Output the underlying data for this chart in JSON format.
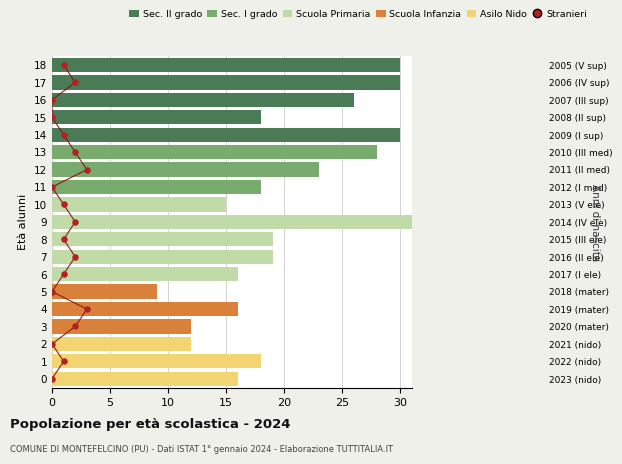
{
  "ages": [
    18,
    17,
    16,
    15,
    14,
    13,
    12,
    11,
    10,
    9,
    8,
    7,
    6,
    5,
    4,
    3,
    2,
    1,
    0
  ],
  "bar_values": [
    30,
    30,
    26,
    18,
    30,
    28,
    23,
    18,
    15,
    31,
    19,
    19,
    16,
    9,
    16,
    12,
    12,
    18,
    16
  ],
  "stranieri_x": [
    1,
    2,
    0,
    0,
    1,
    2,
    3,
    0,
    1,
    2,
    1,
    2,
    1,
    0,
    3,
    2,
    0,
    1,
    0
  ],
  "right_labels": [
    "2005 (V sup)",
    "2006 (IV sup)",
    "2007 (III sup)",
    "2008 (II sup)",
    "2009 (I sup)",
    "2010 (III med)",
    "2011 (II med)",
    "2012 (I med)",
    "2013 (V ele)",
    "2014 (IV ele)",
    "2015 (III ele)",
    "2016 (II ele)",
    "2017 (I ele)",
    "2018 (mater)",
    "2019 (mater)",
    "2020 (mater)",
    "2021 (nido)",
    "2022 (nido)",
    "2023 (nido)"
  ],
  "bar_colors": [
    "#4a7a56",
    "#4a7a56",
    "#4a7a56",
    "#4a7a56",
    "#4a7a56",
    "#7aab6e",
    "#7aab6e",
    "#7aab6e",
    "#c0dba8",
    "#c0dba8",
    "#c0dba8",
    "#c0dba8",
    "#c0dba8",
    "#d9813a",
    "#d9813a",
    "#d9813a",
    "#f2d472",
    "#f2d472",
    "#f2d472"
  ],
  "legend_labels": [
    "Sec. II grado",
    "Sec. I grado",
    "Scuola Primaria",
    "Scuola Infanzia",
    "Asilo Nido",
    "Stranieri"
  ],
  "legend_colors": [
    "#4a7a56",
    "#7aab6e",
    "#c0dba8",
    "#d9813a",
    "#f2d472",
    "#b22222"
  ],
  "title": "Popolazione per età scolastica - 2024",
  "subtitle": "COMUNE DI MONTEFELCINO (PU) - Dati ISTAT 1° gennaio 2024 - Elaborazione TUTTITALIA.IT",
  "ylabel_left": "Età alunni",
  "ylabel_right": "Anni di nascita",
  "xlim": [
    0,
    31
  ],
  "xticks": [
    0,
    5,
    10,
    15,
    20,
    25,
    30
  ],
  "background_color": "#f0f0eb",
  "bar_background": "#ffffff",
  "bar_height": 0.82,
  "stranieri_color": "#b22222",
  "stranieri_line_color": "#8b1010"
}
